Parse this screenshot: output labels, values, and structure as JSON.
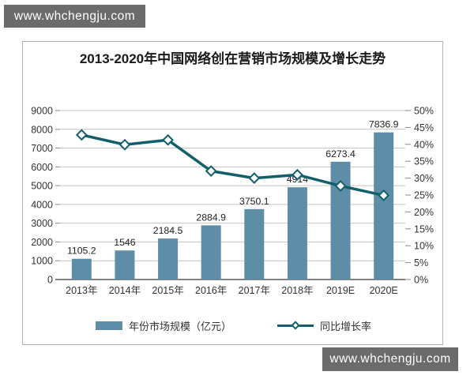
{
  "watermark": {
    "top": "www.whchengju.com",
    "bottom": "www.whchengju.com"
  },
  "chart": {
    "title": "2013-2020年中国网络创在营销市场规模及增长走势"
  },
  "chart_data": {
    "type": "bar+line",
    "title": "2013-2020年中国网络创在营销市场规模及增长走势",
    "categories": [
      "2013年",
      "2014年",
      "2015年",
      "2016年",
      "2017年",
      "2018年",
      "2019E",
      "2020E"
    ],
    "series": [
      {
        "name": "年份市场规模（亿元）",
        "type": "bar",
        "axis": "left",
        "color": "#5e8ea7",
        "values": [
          1105.2,
          1546,
          2184.5,
          2884.9,
          3750.1,
          4914,
          6273.4,
          7836.9
        ],
        "labels": [
          "1105.2",
          "1546",
          "2184.5",
          "2884.9",
          "3750.1",
          "4914",
          "6273.4",
          "7836.9"
        ]
      },
      {
        "name": "同比增长率",
        "type": "line",
        "axis": "right",
        "color": "#125f6b",
        "marker": "diamond",
        "values": [
          42.8,
          39.9,
          41.3,
          32.1,
          30.0,
          31.0,
          27.7,
          24.9
        ]
      }
    ],
    "left_axis": {
      "min": 0,
      "max": 9000,
      "step": 1000,
      "ticks": [
        "0",
        "1000",
        "2000",
        "3000",
        "4000",
        "5000",
        "6000",
        "7000",
        "8000",
        "9000"
      ]
    },
    "right_axis": {
      "min": 0,
      "max": 50,
      "step": 5,
      "ticks": [
        "0%",
        "5%",
        "10%",
        "15%",
        "20%",
        "25%",
        "30%",
        "35%",
        "40%",
        "45%",
        "50%"
      ]
    },
    "grid": true,
    "legend_position": "bottom",
    "colors": {
      "grid": "#c4c4c4",
      "axis_line": "#595959",
      "tick": "#8a8a8a",
      "text": "#333333"
    }
  }
}
